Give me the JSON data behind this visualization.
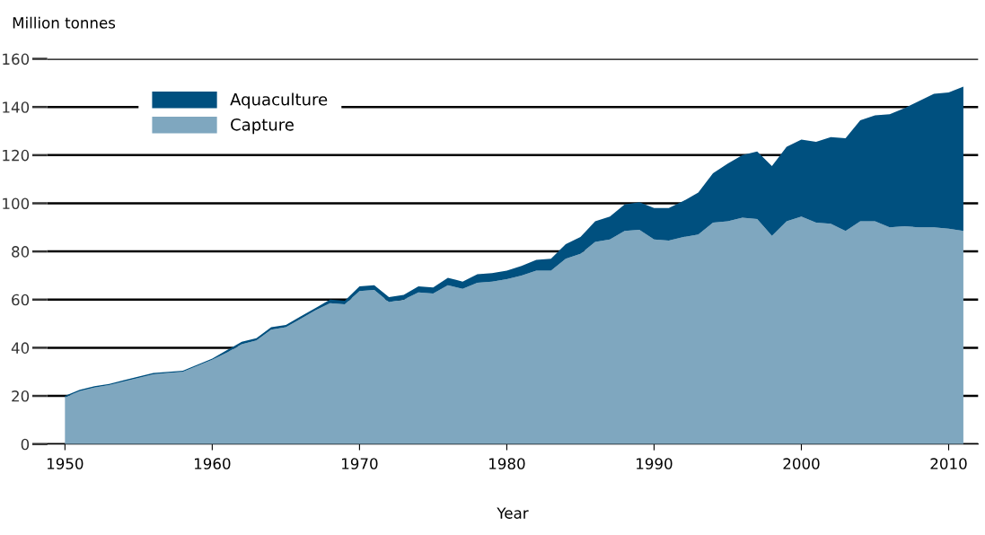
{
  "chart_data": {
    "type": "area",
    "stacked": true,
    "ylabel": "Million tonnes",
    "xlabel": "Year",
    "x": [
      1950,
      1951,
      1952,
      1953,
      1954,
      1955,
      1956,
      1957,
      1958,
      1959,
      1960,
      1961,
      1962,
      1963,
      1964,
      1965,
      1966,
      1967,
      1968,
      1969,
      1970,
      1971,
      1972,
      1973,
      1974,
      1975,
      1976,
      1977,
      1978,
      1979,
      1980,
      1981,
      1982,
      1983,
      1984,
      1985,
      1986,
      1987,
      1988,
      1989,
      1990,
      1991,
      1992,
      1993,
      1994,
      1995,
      1996,
      1997,
      1998,
      1999,
      2000,
      2001,
      2002,
      2003,
      2004,
      2005,
      2006,
      2007,
      2008,
      2009,
      2010,
      2011
    ],
    "series": [
      {
        "name": "Capture",
        "color": "#7fa7bf",
        "values": [
          19.5,
          22,
          23.5,
          24.5,
          26,
          27.5,
          29,
          29.5,
          30,
          32.5,
          35,
          38,
          41.5,
          43,
          47.5,
          48.5,
          52,
          55.5,
          58.5,
          58,
          63.5,
          64,
          59,
          60,
          63,
          62.5,
          66,
          64.5,
          67,
          67.5,
          68.5,
          70,
          72,
          72,
          77,
          79,
          84,
          85,
          88.5,
          89,
          85,
          84.5,
          86,
          87,
          92,
          92.5,
          94,
          93.5,
          86.5,
          92.5,
          94.5,
          92,
          91.5,
          88.5,
          92.5,
          92.5,
          90,
          90.5,
          90,
          90,
          89.5,
          88.5
        ]
      },
      {
        "name": "Aquaculture",
        "color": "#00507f",
        "values": [
          0.5,
          0.5,
          0.5,
          0.5,
          0.5,
          0.5,
          0.5,
          0.5,
          0.5,
          0.5,
          0.5,
          1,
          1,
          1,
          1,
          1,
          1,
          1,
          1.5,
          1.5,
          2,
          2,
          2,
          2,
          2.5,
          2.5,
          3,
          3,
          3.5,
          3.5,
          3.5,
          4,
          4.5,
          5,
          6,
          7,
          8.5,
          9.5,
          11,
          11.5,
          13,
          13.5,
          15,
          17.5,
          20.5,
          24,
          26,
          28,
          29,
          31,
          32,
          33.5,
          36,
          38.5,
          42,
          44,
          47,
          49,
          52.5,
          55.5,
          56.5,
          60
        ]
      }
    ],
    "xlim": [
      1948.8,
      2012
    ],
    "xticks": [
      1950,
      1960,
      1970,
      1980,
      1990,
      2000,
      2010
    ],
    "ylim": [
      0,
      160
    ],
    "yticks": [
      0,
      20,
      40,
      60,
      80,
      100,
      120,
      140,
      160
    ],
    "grid": "y",
    "legend": "top left"
  }
}
